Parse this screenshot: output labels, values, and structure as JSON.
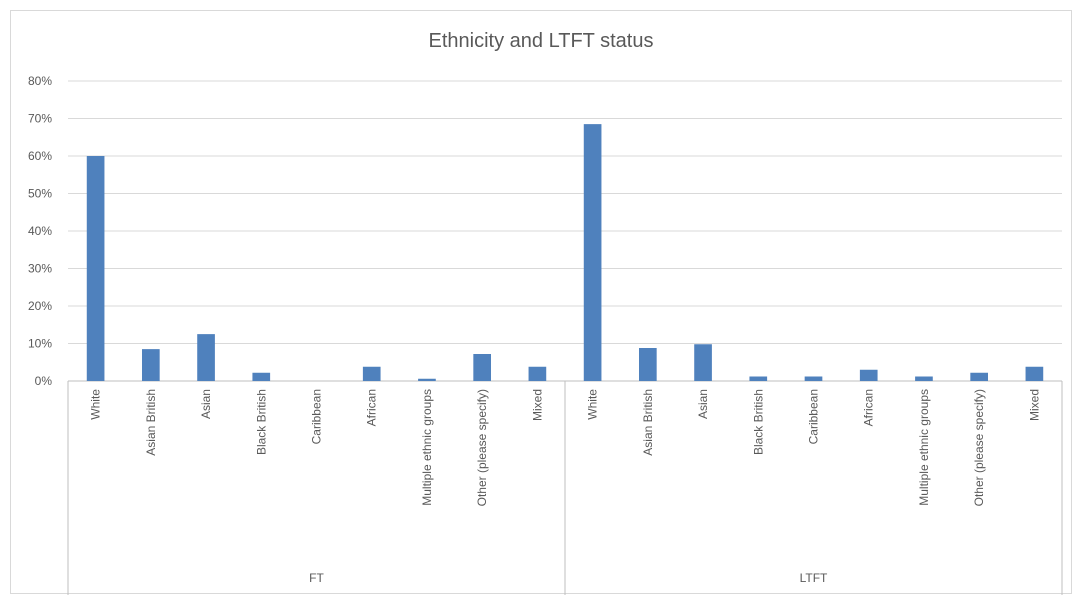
{
  "chart_data": {
    "type": "bar",
    "title": "Ethnicity and LTFT status",
    "xlabel": "",
    "ylabel": "",
    "ylim": [
      0,
      80
    ],
    "yticks": [
      "0%",
      "10%",
      "20%",
      "30%",
      "40%",
      "50%",
      "60%",
      "70%",
      "80%"
    ],
    "grid": true,
    "legend": "none",
    "bar_color": "#4f81bd",
    "groups": [
      {
        "name": "FT",
        "categories": [
          "White",
          "Asian British",
          "Asian",
          "Black British",
          "Caribbean",
          "African",
          "Multiple ethnic groups",
          "Other (please specify)",
          "Mixed"
        ],
        "values": [
          60,
          8.5,
          12.5,
          2.2,
          0,
          3.8,
          0.6,
          7.2,
          3.8
        ]
      },
      {
        "name": "LTFT",
        "categories": [
          "White",
          "Asian British",
          "Asian",
          "Black British",
          "Caribbean",
          "African",
          "Multiple ethnic groups",
          "Other (please specify)",
          "Mixed"
        ],
        "values": [
          68.5,
          8.8,
          9.8,
          1.2,
          1.2,
          3.0,
          1.2,
          2.2,
          3.8
        ]
      }
    ]
  }
}
